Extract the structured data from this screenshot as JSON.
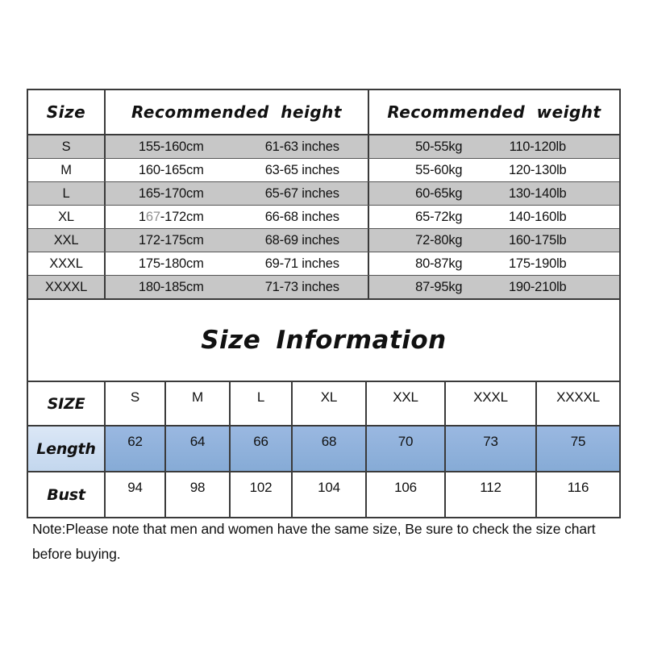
{
  "title": "Size Information",
  "top_table": {
    "header": {
      "size": "Size",
      "height": "Recommended height",
      "weight": "Recommended weight"
    },
    "rows": [
      {
        "size": "S",
        "cm": "155-160cm",
        "inch": "61-63 inches",
        "kg": "50-55kg",
        "lb": "110-120lb"
      },
      {
        "size": "M",
        "cm": "160-165cm",
        "inch": "63-65 inches",
        "kg": "55-60kg",
        "lb": "120-130lb"
      },
      {
        "size": "L",
        "cm": "165-170cm",
        "inch": "65-67 inches",
        "kg": "60-65kg",
        "lb": "130-140lb"
      },
      {
        "size": "XL",
        "cm_pre": "1",
        "cm_gray": "67",
        "cm_post": "-172cm",
        "inch": "66-68 inches",
        "kg": "65-72kg",
        "lb": "140-160lb"
      },
      {
        "size": "XXL",
        "cm": "172-175cm",
        "inch": "68-69 inches",
        "kg": "72-80kg",
        "lb": "160-175lb"
      },
      {
        "size": "XXXL",
        "cm": "175-180cm",
        "inch": "69-71 inches",
        "kg": "80-87kg",
        "lb": "175-190lb"
      },
      {
        "size": "XXXXL",
        "cm": "180-185cm",
        "inch": "71-73 inches",
        "kg": "87-95kg",
        "lb": "190-210lb"
      }
    ]
  },
  "bottom_table": {
    "corner": "SIZE",
    "sizes": [
      "S",
      "M",
      "L",
      "XL",
      "XXL",
      "XXXL",
      "XXXXL"
    ],
    "length": {
      "label": "Length",
      "values": [
        "62",
        "64",
        "66",
        "68",
        "70",
        "73",
        "75"
      ]
    },
    "bust": {
      "label": "Bust",
      "values": [
        "94",
        "98",
        "102",
        "104",
        "106",
        "112",
        "116"
      ]
    }
  },
  "note": "Note:Please note that men and women have the same size, Be sure to check the size chart before buying.",
  "colors": {
    "row_shade": "#c7c7c7",
    "grid": "#3a3a3a",
    "length_label_bg": "#cfe0f2",
    "length_value_bg": "#8eb1db"
  }
}
